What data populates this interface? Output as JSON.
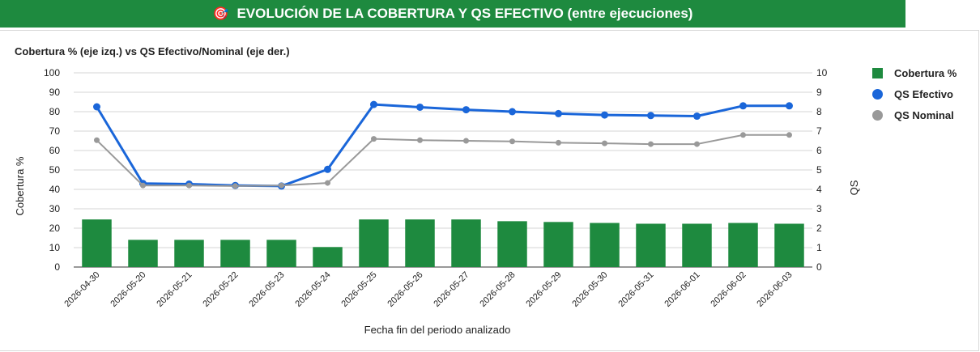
{
  "header": {
    "title": "EVOLUCIÓN DE LA COBERTURA Y QS EFECTIVO (entre ejecuciones)",
    "icon": "target-icon",
    "background": "#1e8a3f"
  },
  "chart_data": {
    "type": "bar",
    "title": "Cobertura % (eje izq.) vs QS Efectivo/Nominal (eje der.)",
    "xlabel": "Fecha fin del periodo analizado",
    "ylabel": "Cobertura %",
    "y2label": "QS",
    "ylim": [
      0,
      100
    ],
    "y2lim": [
      0,
      10
    ],
    "yticks": [
      "0",
      "10",
      "20",
      "30",
      "40",
      "50",
      "60",
      "70",
      "80",
      "90",
      "100"
    ],
    "y2ticks": [
      "0",
      "1",
      "2",
      "3",
      "4",
      "5",
      "6",
      "7",
      "8",
      "9",
      "10"
    ],
    "grid": true,
    "legend_position": "right",
    "categories": [
      "2026-04-30",
      "2026-05-20",
      "2026-05-21",
      "2026-05-22",
      "2026-05-23",
      "2026-05-24",
      "2026-05-25",
      "2026-05-26",
      "2026-05-27",
      "2026-05-28",
      "2026-05-29",
      "2026-05-30",
      "2026-05-31",
      "2026-06-01",
      "2026-06-02",
      "2026-06-03"
    ],
    "series": [
      {
        "name": "Cobertura %",
        "type": "bar",
        "axis": "left",
        "color": "#1e8a3f",
        "values": [
          24.5,
          14,
          14,
          14,
          14,
          10.3,
          24.5,
          24.5,
          24.5,
          23.6,
          23.2,
          22.7,
          22.3,
          22.3,
          22.7,
          22.3
        ]
      },
      {
        "name": "QS Efectivo",
        "type": "line",
        "axis": "right",
        "color": "#1a66d9",
        "values": [
          8.25,
          4.3,
          4.27,
          4.2,
          4.17,
          5.03,
          8.37,
          8.23,
          8.1,
          8.0,
          7.9,
          7.83,
          7.8,
          7.77,
          8.3,
          8.3
        ]
      },
      {
        "name": "QS Nominal",
        "type": "line",
        "axis": "right",
        "color": "#999999",
        "values": [
          6.53,
          4.2,
          4.2,
          4.17,
          4.2,
          4.33,
          6.6,
          6.53,
          6.5,
          6.47,
          6.4,
          6.37,
          6.33,
          6.33,
          6.8,
          6.8
        ]
      }
    ]
  }
}
